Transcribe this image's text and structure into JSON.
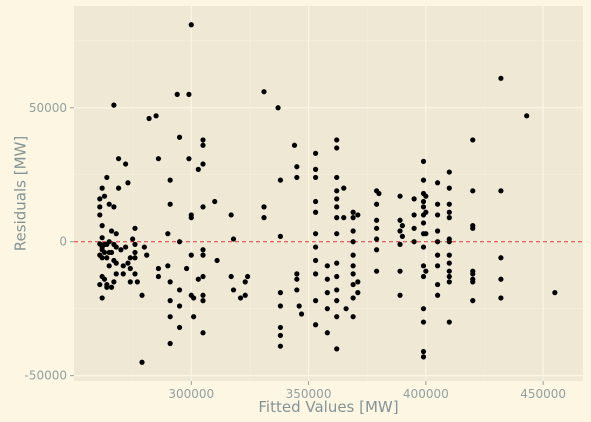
{
  "colors": {
    "background": "#fdf6e3",
    "panel": "#eee8d5",
    "grid_major": "#fdf6e3",
    "grid_minor": "#f6f0dc",
    "point": "#000000",
    "zero_line": "#dc322f",
    "text": "#839496"
  },
  "chart_data": {
    "type": "scatter",
    "title": "",
    "xlabel": "Fitted Values [MW]",
    "ylabel": "Residuals [MW]",
    "xlim": [
      250000,
      467000
    ],
    "ylim": [
      -52000,
      88000
    ],
    "x_ticks": [
      300000,
      350000,
      400000,
      450000
    ],
    "x_tick_labels": [
      "300000",
      "350000",
      "400000",
      "450000"
    ],
    "y_ticks": [
      -50000,
      0,
      50000
    ],
    "y_tick_labels": [
      "-50000",
      "0",
      "50000"
    ],
    "grid": true,
    "legend": "none",
    "reference_line": {
      "y": 0,
      "style": "dashed"
    },
    "points": [
      [
        261000,
        -800
      ],
      [
        261000,
        -5000
      ],
      [
        261000,
        10000
      ],
      [
        261000,
        13000
      ],
      [
        261000,
        16000
      ],
      [
        261000,
        -16000
      ],
      [
        262000,
        -3000
      ],
      [
        262000,
        1500
      ],
      [
        262000,
        -2000
      ],
      [
        262000,
        -6000
      ],
      [
        262000,
        -13000
      ],
      [
        262000,
        6000
      ],
      [
        262000,
        20000
      ],
      [
        262000,
        -21000
      ],
      [
        263000,
        -1000
      ],
      [
        263000,
        -4000
      ],
      [
        263000,
        -14000
      ],
      [
        263000,
        17000
      ],
      [
        264000,
        -1000
      ],
      [
        264000,
        -6000
      ],
      [
        264000,
        -17000
      ],
      [
        264000,
        -16000
      ],
      [
        264000,
        24000
      ],
      [
        265000,
        14000
      ],
      [
        265000,
        0
      ],
      [
        265000,
        -4000
      ],
      [
        265000,
        -9000
      ],
      [
        266000,
        -17000
      ],
      [
        266000,
        -4000
      ],
      [
        266000,
        4000
      ],
      [
        267000,
        51000
      ],
      [
        267000,
        -1000
      ],
      [
        267000,
        -7000
      ],
      [
        267000,
        -15000
      ],
      [
        267000,
        13000
      ],
      [
        268000,
        3000
      ],
      [
        268000,
        -2000
      ],
      [
        268000,
        -8000
      ],
      [
        268000,
        -12000
      ],
      [
        269000,
        31000
      ],
      [
        269000,
        20000
      ],
      [
        270000,
        -3000
      ],
      [
        271000,
        -9000
      ],
      [
        271000,
        -12000
      ],
      [
        272000,
        29000
      ],
      [
        272000,
        -2000
      ],
      [
        273000,
        22000
      ],
      [
        273000,
        -8000
      ],
      [
        274000,
        -6000
      ],
      [
        274000,
        -10000
      ],
      [
        274000,
        -15000
      ],
      [
        275000,
        1000
      ],
      [
        276000,
        5000
      ],
      [
        276000,
        -1000
      ],
      [
        276000,
        -12000
      ],
      [
        276000,
        -4000
      ],
      [
        276000,
        -6000
      ],
      [
        277000,
        -15000
      ],
      [
        279000,
        -45000
      ],
      [
        279000,
        -20000
      ],
      [
        280000,
        -2000
      ],
      [
        281000,
        -5000
      ],
      [
        282000,
        46000
      ],
      [
        285000,
        47000
      ],
      [
        286000,
        -13000
      ],
      [
        286000,
        -10000
      ],
      [
        286000,
        31000
      ],
      [
        290000,
        -9000
      ],
      [
        290000,
        3000
      ],
      [
        291000,
        23000
      ],
      [
        291000,
        -22000
      ],
      [
        291000,
        -28000
      ],
      [
        291000,
        -38000
      ],
      [
        291000,
        14000
      ],
      [
        291000,
        -15000
      ],
      [
        294000,
        55000
      ],
      [
        295000,
        39000
      ],
      [
        295000,
        0
      ],
      [
        295000,
        -18000
      ],
      [
        295000,
        -24000
      ],
      [
        295000,
        -32000
      ],
      [
        298000,
        -10000
      ],
      [
        299000,
        31000
      ],
      [
        299000,
        55000
      ],
      [
        300000,
        -20000
      ],
      [
        300000,
        10000
      ],
      [
        300000,
        9000
      ],
      [
        300000,
        -5000
      ],
      [
        300000,
        81000
      ],
      [
        301000,
        -21000
      ],
      [
        301000,
        -28000
      ],
      [
        303000,
        -14000
      ],
      [
        303000,
        27000
      ],
      [
        305000,
        38000
      ],
      [
        305000,
        36000
      ],
      [
        305000,
        29000
      ],
      [
        305000,
        13000
      ],
      [
        305000,
        -5000
      ],
      [
        305000,
        -13000
      ],
      [
        305000,
        -20000
      ],
      [
        305000,
        -22000
      ],
      [
        305000,
        -34000
      ],
      [
        305000,
        -3000
      ],
      [
        310000,
        15000
      ],
      [
        311000,
        -7000
      ],
      [
        317000,
        10000
      ],
      [
        317000,
        -13000
      ],
      [
        318000,
        1000
      ],
      [
        318000,
        -18000
      ],
      [
        321000,
        -21000
      ],
      [
        323000,
        -15000
      ],
      [
        323000,
        -20000
      ],
      [
        324000,
        -13000
      ],
      [
        331000,
        56000
      ],
      [
        331000,
        13000
      ],
      [
        331000,
        9000
      ],
      [
        337000,
        50000
      ],
      [
        338000,
        23000
      ],
      [
        338000,
        2000
      ],
      [
        338000,
        -19000
      ],
      [
        338000,
        -24000
      ],
      [
        338000,
        -32000
      ],
      [
        338000,
        -35000
      ],
      [
        338000,
        -39000
      ],
      [
        344000,
        36000
      ],
      [
        345000,
        -12000
      ],
      [
        345000,
        -14000
      ],
      [
        345000,
        -18000
      ],
      [
        345000,
        28000
      ],
      [
        345000,
        24000
      ],
      [
        346000,
        -24000
      ],
      [
        347000,
        -27000
      ],
      [
        353000,
        33000
      ],
      [
        353000,
        27000
      ],
      [
        353000,
        24000
      ],
      [
        353000,
        15000
      ],
      [
        353000,
        11000
      ],
      [
        353000,
        3000
      ],
      [
        353000,
        -2000
      ],
      [
        353000,
        -7000
      ],
      [
        353000,
        -12000
      ],
      [
        353000,
        -22000
      ],
      [
        353000,
        -31000
      ],
      [
        358000,
        -9000
      ],
      [
        358000,
        -14000
      ],
      [
        358000,
        -19000
      ],
      [
        358000,
        -25000
      ],
      [
        358000,
        -34000
      ],
      [
        362000,
        38000
      ],
      [
        362000,
        35000
      ],
      [
        362000,
        24000
      ],
      [
        362000,
        19000
      ],
      [
        362000,
        16000
      ],
      [
        362000,
        13000
      ],
      [
        362000,
        9000
      ],
      [
        362000,
        3000
      ],
      [
        362000,
        -8000
      ],
      [
        362000,
        -13000
      ],
      [
        362000,
        -18000
      ],
      [
        362000,
        -22000
      ],
      [
        362000,
        -28000
      ],
      [
        362000,
        -40000
      ],
      [
        365000,
        20000
      ],
      [
        365000,
        9000
      ],
      [
        366000,
        -25000
      ],
      [
        369000,
        11000
      ],
      [
        369000,
        9000
      ],
      [
        369000,
        4000
      ],
      [
        369000,
        0
      ],
      [
        369000,
        -5000
      ],
      [
        369000,
        -9000
      ],
      [
        369000,
        -12000
      ],
      [
        369000,
        -16000
      ],
      [
        369000,
        -21000
      ],
      [
        369000,
        -28000
      ],
      [
        371000,
        10000
      ],
      [
        371000,
        -15000
      ],
      [
        371000,
        -19000
      ],
      [
        379000,
        19000
      ],
      [
        379000,
        14000
      ],
      [
        379000,
        8000
      ],
      [
        379000,
        5000
      ],
      [
        379000,
        1000
      ],
      [
        379000,
        -3000
      ],
      [
        379000,
        -11000
      ],
      [
        380000,
        18000
      ],
      [
        389000,
        17000
      ],
      [
        389000,
        8000
      ],
      [
        389000,
        4000
      ],
      [
        389000,
        -1000
      ],
      [
        389000,
        -11000
      ],
      [
        389000,
        -20000
      ],
      [
        390000,
        6000
      ],
      [
        390000,
        2000
      ],
      [
        395000,
        16000
      ],
      [
        395000,
        10000
      ],
      [
        395000,
        5000
      ],
      [
        395000,
        0
      ],
      [
        399000,
        30000
      ],
      [
        399000,
        23000
      ],
      [
        399000,
        18000
      ],
      [
        399000,
        15000
      ],
      [
        399000,
        13000
      ],
      [
        399000,
        10000
      ],
      [
        399000,
        7000
      ],
      [
        399000,
        3000
      ],
      [
        399000,
        -2000
      ],
      [
        399000,
        -9000
      ],
      [
        399000,
        -13000
      ],
      [
        399000,
        -25000
      ],
      [
        399000,
        -30000
      ],
      [
        399000,
        -41000
      ],
      [
        399000,
        -43000
      ],
      [
        400000,
        17000
      ],
      [
        400000,
        11000
      ],
      [
        400000,
        3000
      ],
      [
        400000,
        -11000
      ],
      [
        405000,
        22000
      ],
      [
        405000,
        14000
      ],
      [
        405000,
        10000
      ],
      [
        405000,
        4000
      ],
      [
        405000,
        0
      ],
      [
        405000,
        -5000
      ],
      [
        405000,
        -9000
      ],
      [
        405000,
        -16000
      ],
      [
        405000,
        -20000
      ],
      [
        410000,
        26000
      ],
      [
        410000,
        20000
      ],
      [
        410000,
        14000
      ],
      [
        410000,
        11000
      ],
      [
        410000,
        9000
      ],
      [
        410000,
        1000
      ],
      [
        410000,
        0
      ],
      [
        410000,
        -5000
      ],
      [
        410000,
        -8000
      ],
      [
        410000,
        -11000
      ],
      [
        410000,
        -13000
      ],
      [
        410000,
        -15000
      ],
      [
        410000,
        -30000
      ],
      [
        420000,
        38000
      ],
      [
        420000,
        19000
      ],
      [
        420000,
        6000
      ],
      [
        420000,
        5000
      ],
      [
        420000,
        -11000
      ],
      [
        420000,
        -12000
      ],
      [
        420000,
        -14000
      ],
      [
        420000,
        -15000
      ],
      [
        420000,
        -22000
      ],
      [
        432000,
        61000
      ],
      [
        432000,
        19000
      ],
      [
        432000,
        -6000
      ],
      [
        432000,
        -14000
      ],
      [
        432000,
        -21000
      ],
      [
        443000,
        47000
      ],
      [
        455000,
        -19000
      ]
    ]
  }
}
